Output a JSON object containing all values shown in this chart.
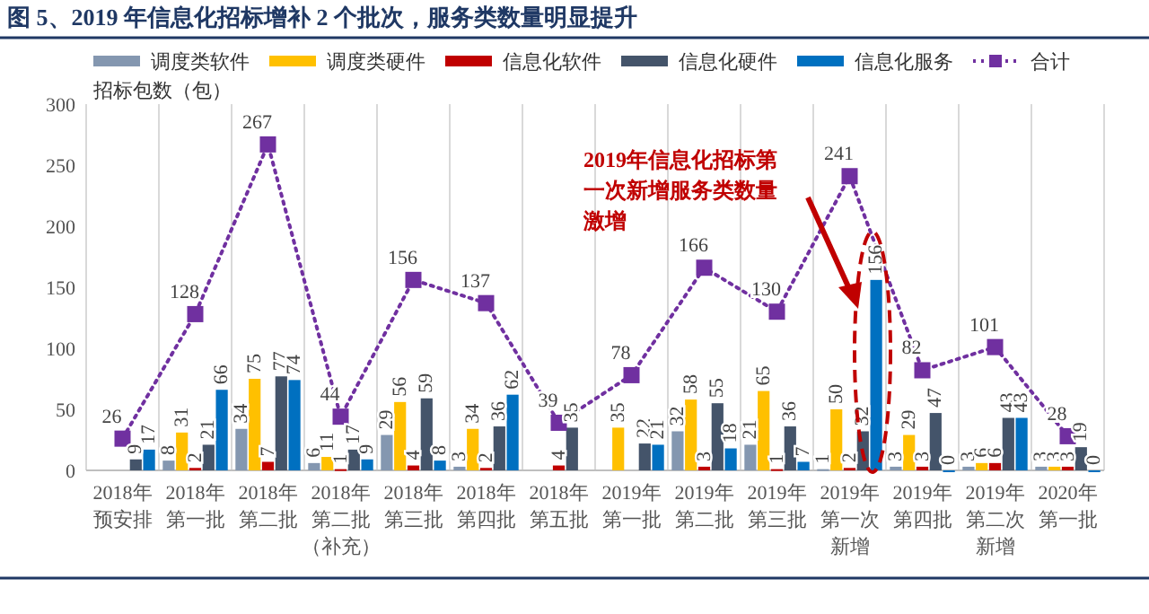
{
  "chart_data": {
    "type": "bar",
    "title": "图 5、2019 年信息化招标增补 2 个批次，服务类数量明显提升",
    "ylabel": "招标包数（包）",
    "categories": [
      "2018年预安排",
      "2018年第一批",
      "2018年第二批",
      "2018年第二批（补充）",
      "2018年第三批",
      "2018年第四批",
      "2018年第五批",
      "2019年第一批",
      "2019年第二批",
      "2019年第三批",
      "2019年第一次新增",
      "2019年第四批",
      "2019年第二次新增",
      "2020年第一批"
    ],
    "series": [
      {
        "name": "调度类软件",
        "color": "#8497b0",
        "values": [
          null,
          8,
          34,
          6,
          29,
          3,
          null,
          null,
          32,
          21,
          1,
          3,
          3,
          3
        ]
      },
      {
        "name": "调度类硬件",
        "color": "#ffc000",
        "values": [
          null,
          31,
          75,
          11,
          56,
          34,
          null,
          35,
          58,
          65,
          50,
          29,
          6,
          3
        ]
      },
      {
        "name": "信息化软件",
        "color": "#c00000",
        "values": [
          null,
          2,
          7,
          1,
          4,
          2,
          4,
          null,
          3,
          1,
          2,
          3,
          6,
          3
        ]
      },
      {
        "name": "信息化硬件",
        "color": "#44546a",
        "values": [
          9,
          21,
          77,
          17,
          59,
          36,
          35,
          22,
          55,
          36,
          32,
          47,
          43,
          19
        ]
      },
      {
        "name": "信息化服务",
        "color": "#0070c0",
        "values": [
          17,
          66,
          74,
          9,
          8,
          62,
          null,
          21,
          18,
          7,
          156,
          0,
          43,
          0
        ]
      },
      {
        "name": "合计",
        "type": "line",
        "color": "#7030a0",
        "marker": "square",
        "line_style": "dotted",
        "values": [
          26,
          128,
          267,
          44,
          156,
          137,
          39,
          78,
          166,
          130,
          241,
          82,
          101,
          28
        ]
      }
    ],
    "ylim": [
      0,
      300
    ],
    "yticks": [
      0,
      50,
      100,
      150,
      200,
      250,
      300
    ],
    "grid": "x",
    "legend": "top",
    "data_labels": true,
    "annotations": [
      "2019年信息化招标第一次新增服务类数量激增"
    ]
  }
}
